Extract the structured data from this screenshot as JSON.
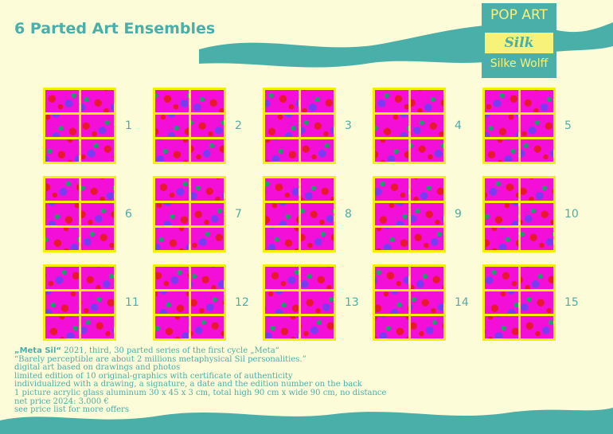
{
  "header": {
    "title": "6 Parted Art Ensembles"
  },
  "logo": {
    "top": "POP ART",
    "script": "Silk",
    "name": "Silke Wolff"
  },
  "items": [
    "1",
    "2",
    "3",
    "4",
    "5",
    "6",
    "7",
    "8",
    "9",
    "10",
    "11",
    "12",
    "13",
    "14",
    "15"
  ],
  "description": {
    "lead": "„Meta Sil“",
    "lead_rest": " 2021, third, 30 parted series of the first cycle „Meta“",
    "lines": [
      "“Barely perceptible are about 2 millions metaphysical Sil personalities.”",
      "digital art based on drawings and photos",
      "limited edition of 10 original-graphics with certificate of authenticity",
      "individualized with a drawing, a signature, a date and the edition number on the back",
      "1 picture acrylic glass aluminum 30 x 45 x 3 cm, total high 90 cm x wide 90 cm, no distance",
      "net price 2024: 3.000 €",
      "see price list for more offers"
    ]
  }
}
